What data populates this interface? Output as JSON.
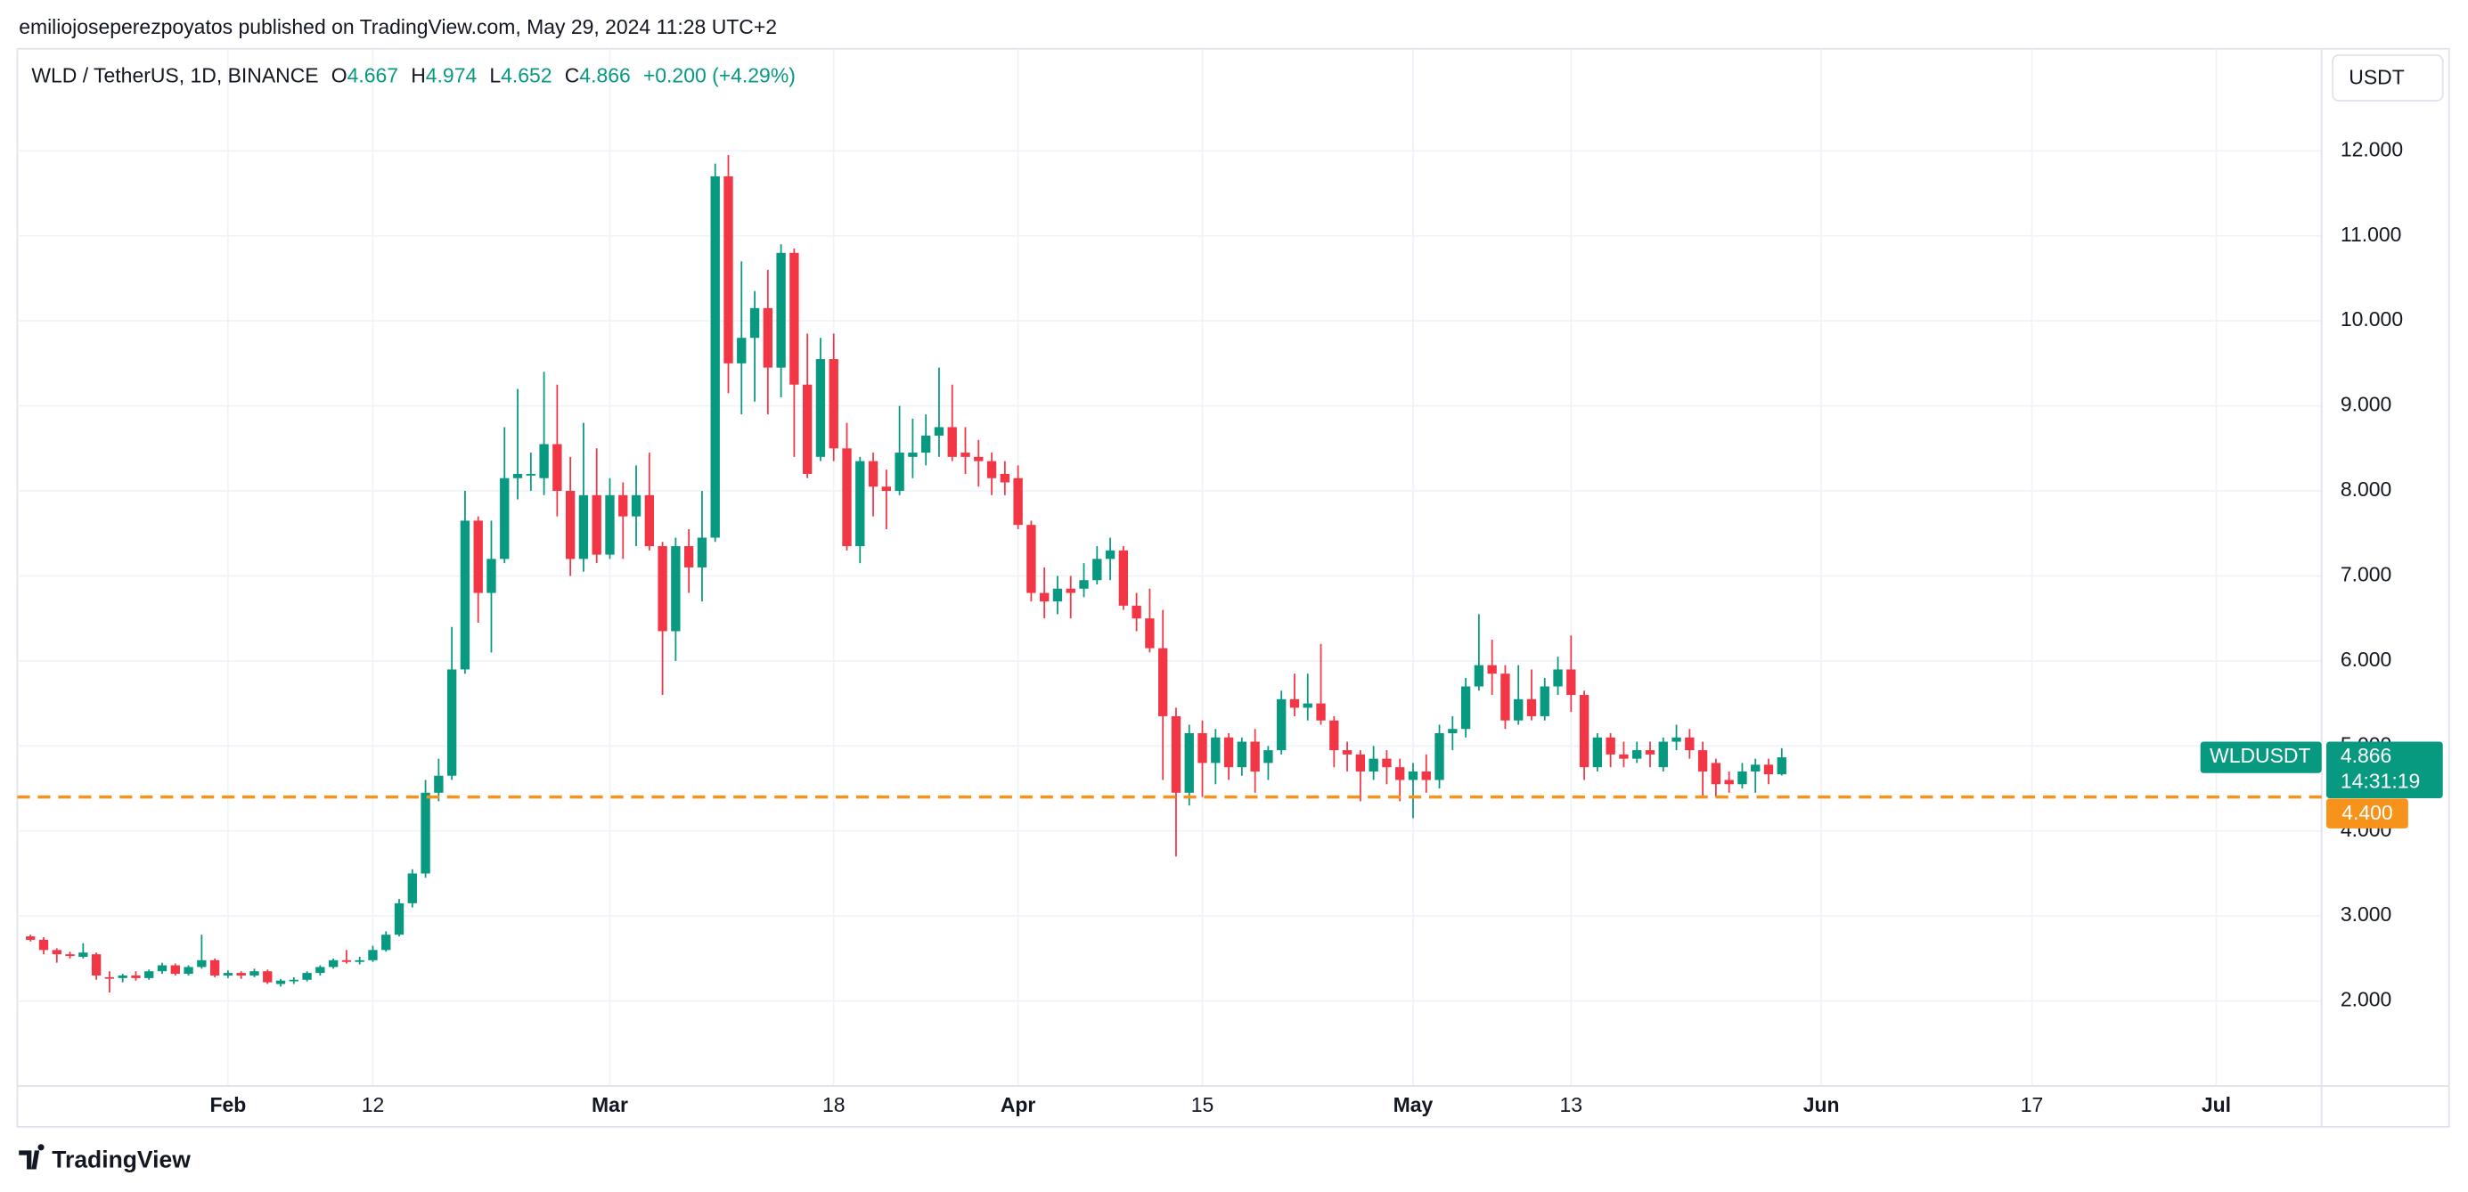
{
  "page": {
    "published": "emiliojoseperezpoyatos published on TradingView.com, May 29, 2024 11:28 UTC+2",
    "logo": "TradingView",
    "currency": "USDT"
  },
  "chart_data": {
    "type": "candlestick",
    "title": "WLD / TetherUS, 1D, BINANCE",
    "legend": {
      "open_label": "O",
      "high_label": "H",
      "low_label": "L",
      "close_label": "C",
      "change": "+0.200 (+4.29%)"
    },
    "countdown": "14:31:19",
    "x": [
      "2024-01-17",
      "2024-01-18",
      "2024-01-19",
      "2024-01-20",
      "2024-01-21",
      "2024-01-22",
      "2024-01-23",
      "2024-01-24",
      "2024-01-25",
      "2024-01-26",
      "2024-01-27",
      "2024-01-28",
      "2024-01-29",
      "2024-01-30",
      "2024-01-31",
      "2024-02-01",
      "2024-02-02",
      "2024-02-03",
      "2024-02-04",
      "2024-02-05",
      "2024-02-06",
      "2024-02-07",
      "2024-02-08",
      "2024-02-09",
      "2024-02-10",
      "2024-02-11",
      "2024-02-12",
      "2024-02-13",
      "2024-02-14",
      "2024-02-15",
      "2024-02-16",
      "2024-02-17",
      "2024-02-18",
      "2024-02-19",
      "2024-02-20",
      "2024-02-21",
      "2024-02-22",
      "2024-02-23",
      "2024-02-24",
      "2024-02-25",
      "2024-02-26",
      "2024-02-27",
      "2024-02-28",
      "2024-02-29",
      "2024-03-01",
      "2024-03-02",
      "2024-03-03",
      "2024-03-04",
      "2024-03-05",
      "2024-03-06",
      "2024-03-07",
      "2024-03-08",
      "2024-03-09",
      "2024-03-10",
      "2024-03-11",
      "2024-03-12",
      "2024-03-13",
      "2024-03-14",
      "2024-03-15",
      "2024-03-16",
      "2024-03-17",
      "2024-03-18",
      "2024-03-19",
      "2024-03-20",
      "2024-03-21",
      "2024-03-22",
      "2024-03-23",
      "2024-03-24",
      "2024-03-25",
      "2024-03-26",
      "2024-03-27",
      "2024-03-28",
      "2024-03-29",
      "2024-03-30",
      "2024-03-31",
      "2024-04-01",
      "2024-04-02",
      "2024-04-03",
      "2024-04-04",
      "2024-04-05",
      "2024-04-06",
      "2024-04-07",
      "2024-04-08",
      "2024-04-09",
      "2024-04-10",
      "2024-04-11",
      "2024-04-12",
      "2024-04-13",
      "2024-04-14",
      "2024-04-15",
      "2024-04-16",
      "2024-04-17",
      "2024-04-18",
      "2024-04-19",
      "2024-04-20",
      "2024-04-21",
      "2024-04-22",
      "2024-04-23",
      "2024-04-24",
      "2024-04-25",
      "2024-04-26",
      "2024-04-27",
      "2024-04-28",
      "2024-04-29",
      "2024-04-30",
      "2024-05-01",
      "2024-05-02",
      "2024-05-03",
      "2024-05-04",
      "2024-05-05",
      "2024-05-06",
      "2024-05-07",
      "2024-05-08",
      "2024-05-09",
      "2024-05-10",
      "2024-05-11",
      "2024-05-12",
      "2024-05-13",
      "2024-05-14",
      "2024-05-15",
      "2024-05-16",
      "2024-05-17",
      "2024-05-18",
      "2024-05-19",
      "2024-05-20",
      "2024-05-21",
      "2024-05-22",
      "2024-05-23",
      "2024-05-24",
      "2024-05-25",
      "2024-05-26",
      "2024-05-27",
      "2024-05-28",
      "2024-05-29"
    ],
    "series": [
      {
        "name": "WLDUSDT",
        "up_color": "#089981",
        "down_color": "#f23645",
        "open": [
          2.76,
          2.72,
          2.6,
          2.55,
          2.52,
          2.55,
          2.28,
          2.27,
          2.3,
          2.27,
          2.35,
          2.42,
          2.32,
          2.4,
          2.48,
          2.3,
          2.33,
          2.3,
          2.35,
          2.2,
          2.24,
          2.25,
          2.33,
          2.4,
          2.48,
          2.46,
          2.48,
          2.6,
          2.78,
          3.15,
          3.5,
          4.45,
          4.65,
          5.9,
          7.65,
          6.8,
          7.2,
          8.15,
          8.18,
          8.15,
          8.55,
          8.0,
          7.2,
          7.95,
          7.25,
          7.95,
          7.7,
          7.95,
          7.35,
          6.35,
          7.35,
          7.1,
          7.45,
          11.7,
          9.5,
          9.8,
          10.15,
          9.45,
          10.8,
          9.25,
          8.4,
          9.55,
          8.5,
          7.35,
          8.35,
          8.05,
          8.0,
          8.4,
          8.45,
          8.65,
          8.75,
          8.45,
          8.4,
          8.35,
          8.2,
          8.15,
          7.6,
          6.8,
          6.7,
          6.85,
          6.85,
          6.95,
          7.2,
          7.3,
          6.65,
          6.5,
          6.15,
          5.35,
          4.45,
          5.15,
          4.8,
          5.1,
          4.75,
          5.05,
          4.8,
          4.95,
          5.55,
          5.45,
          5.5,
          5.3,
          4.95,
          4.9,
          4.7,
          4.85,
          4.75,
          4.6,
          4.7,
          4.6,
          5.15,
          5.2,
          5.7,
          5.95,
          5.85,
          5.3,
          5.55,
          5.35,
          5.7,
          5.9,
          5.6,
          4.75,
          5.1,
          4.9,
          4.85,
          4.95,
          4.75,
          5.05,
          5.1,
          4.95,
          4.8,
          4.6,
          4.55,
          4.7,
          4.78,
          4.667
        ],
        "high": [
          2.78,
          2.75,
          2.62,
          2.58,
          2.68,
          2.57,
          2.35,
          2.32,
          2.35,
          2.37,
          2.45,
          2.44,
          2.42,
          2.78,
          2.5,
          2.36,
          2.35,
          2.38,
          2.37,
          2.26,
          2.28,
          2.35,
          2.42,
          2.5,
          2.6,
          2.52,
          2.65,
          2.82,
          3.2,
          3.55,
          4.6,
          4.85,
          6.4,
          8.0,
          7.7,
          7.65,
          8.75,
          9.2,
          8.45,
          9.4,
          9.25,
          8.4,
          8.8,
          8.5,
          8.15,
          8.1,
          8.3,
          8.45,
          7.4,
          7.45,
          7.55,
          8.0,
          11.85,
          11.95,
          10.7,
          10.35,
          10.6,
          10.9,
          10.85,
          9.85,
          9.8,
          9.85,
          8.8,
          8.4,
          8.45,
          8.25,
          9.0,
          8.85,
          8.9,
          9.45,
          9.25,
          8.75,
          8.6,
          8.45,
          8.35,
          8.3,
          7.65,
          7.1,
          7.0,
          7.0,
          7.15,
          7.35,
          7.45,
          7.35,
          6.8,
          6.85,
          6.6,
          5.45,
          5.25,
          5.3,
          5.2,
          5.15,
          5.1,
          5.2,
          5.0,
          5.65,
          5.85,
          5.85,
          6.2,
          5.35,
          5.05,
          4.95,
          5.0,
          4.95,
          4.85,
          4.8,
          4.9,
          5.25,
          5.35,
          5.8,
          6.55,
          6.25,
          5.95,
          5.95,
          5.9,
          5.8,
          6.05,
          6.3,
          5.65,
          5.15,
          5.15,
          5.05,
          5.05,
          5.05,
          5.1,
          5.25,
          5.2,
          5.05,
          4.85,
          4.7,
          4.8,
          4.85,
          4.85,
          4.974
        ],
        "low": [
          2.7,
          2.55,
          2.45,
          2.5,
          2.5,
          2.25,
          2.1,
          2.22,
          2.24,
          2.25,
          2.32,
          2.3,
          2.3,
          2.38,
          2.28,
          2.27,
          2.26,
          2.28,
          2.2,
          2.17,
          2.2,
          2.23,
          2.3,
          2.38,
          2.44,
          2.43,
          2.46,
          2.58,
          2.76,
          3.1,
          3.45,
          4.35,
          4.6,
          5.85,
          6.45,
          6.1,
          7.15,
          7.9,
          8.0,
          7.95,
          7.7,
          7.0,
          7.05,
          7.15,
          7.2,
          7.2,
          7.35,
          7.3,
          5.6,
          6.0,
          6.8,
          6.7,
          7.4,
          9.15,
          8.9,
          9.05,
          8.9,
          9.1,
          8.4,
          8.15,
          8.35,
          8.35,
          7.3,
          7.15,
          7.7,
          7.55,
          7.95,
          8.15,
          8.3,
          8.4,
          8.35,
          8.2,
          8.05,
          7.95,
          7.95,
          7.55,
          6.7,
          6.5,
          6.55,
          6.5,
          6.75,
          6.9,
          6.95,
          6.6,
          6.35,
          6.1,
          4.6,
          3.7,
          4.3,
          4.4,
          4.55,
          4.6,
          4.65,
          4.45,
          4.6,
          4.9,
          5.35,
          5.3,
          5.25,
          4.75,
          4.7,
          4.35,
          4.6,
          4.55,
          4.35,
          4.15,
          4.45,
          4.5,
          4.95,
          5.1,
          5.65,
          5.6,
          5.2,
          5.25,
          5.3,
          5.3,
          5.6,
          5.4,
          4.6,
          4.7,
          4.75,
          4.75,
          4.8,
          4.75,
          4.7,
          4.95,
          4.85,
          4.4,
          4.4,
          4.45,
          4.5,
          4.45,
          4.55,
          4.652
        ],
        "close": [
          2.72,
          2.6,
          2.55,
          2.53,
          2.57,
          2.3,
          2.27,
          2.3,
          2.27,
          2.35,
          2.42,
          2.32,
          2.4,
          2.48,
          2.3,
          2.33,
          2.3,
          2.35,
          2.22,
          2.24,
          2.25,
          2.33,
          2.4,
          2.48,
          2.46,
          2.48,
          2.6,
          2.78,
          3.15,
          3.5,
          4.45,
          4.65,
          5.9,
          7.65,
          6.8,
          7.2,
          8.15,
          8.2,
          8.2,
          8.55,
          8.0,
          7.2,
          7.95,
          7.25,
          7.95,
          7.7,
          7.95,
          7.35,
          6.35,
          7.35,
          7.1,
          7.45,
          11.7,
          9.5,
          9.8,
          10.15,
          9.45,
          10.8,
          9.25,
          8.2,
          9.55,
          8.5,
          7.35,
          8.35,
          8.05,
          8.0,
          8.45,
          8.45,
          8.65,
          8.75,
          8.4,
          8.4,
          8.35,
          8.15,
          8.1,
          7.6,
          6.8,
          6.7,
          6.85,
          6.8,
          6.95,
          7.2,
          7.3,
          6.65,
          6.5,
          6.15,
          5.35,
          4.45,
          5.15,
          4.8,
          5.1,
          4.75,
          5.05,
          4.7,
          4.95,
          5.55,
          5.45,
          5.5,
          5.3,
          4.95,
          4.9,
          4.7,
          4.85,
          4.75,
          4.6,
          4.7,
          4.6,
          5.15,
          5.2,
          5.7,
          5.95,
          5.85,
          5.3,
          5.55,
          5.35,
          5.7,
          5.9,
          5.6,
          4.75,
          5.1,
          4.9,
          4.85,
          4.95,
          4.9,
          5.05,
          5.1,
          4.95,
          4.7,
          4.55,
          4.55,
          4.7,
          4.78,
          4.667,
          4.866
        ]
      }
    ],
    "hlines": [
      {
        "value": 4.4,
        "label": "4.400",
        "color": "#f7931a"
      }
    ],
    "xlim": [
      "2024-01-16",
      "2024-07-09"
    ],
    "xticks": [
      {
        "value": "2024-02-01",
        "label": "Feb"
      },
      {
        "value": "2024-02-12",
        "label": "12"
      },
      {
        "value": "2024-03-01",
        "label": "Mar"
      },
      {
        "value": "2024-03-18",
        "label": "18"
      },
      {
        "value": "2024-04-01",
        "label": "Apr"
      },
      {
        "value": "2024-04-15",
        "label": "15"
      },
      {
        "value": "2024-05-01",
        "label": "May"
      },
      {
        "value": "2024-05-13",
        "label": "13"
      },
      {
        "value": "2024-06-01",
        "label": "Jun"
      },
      {
        "value": "2024-06-17",
        "label": "17"
      },
      {
        "value": "2024-07-01",
        "label": "Jul"
      }
    ],
    "ylim": [
      0.52,
      13.2
    ],
    "yticks": [
      {
        "value": 2,
        "label": "2.000"
      },
      {
        "value": 3,
        "label": "3.000"
      },
      {
        "value": 4,
        "label": "4.000"
      },
      {
        "value": 5,
        "label": "5.000"
      },
      {
        "value": 6,
        "label": "6.000"
      },
      {
        "value": 7,
        "label": "7.000"
      },
      {
        "value": 8,
        "label": "8.000"
      },
      {
        "value": 9,
        "label": "9.000"
      },
      {
        "value": 10,
        "label": "10.000"
      },
      {
        "value": 11,
        "label": "11.000"
      },
      {
        "value": 12,
        "label": "12.000"
      }
    ],
    "grid": true
  }
}
